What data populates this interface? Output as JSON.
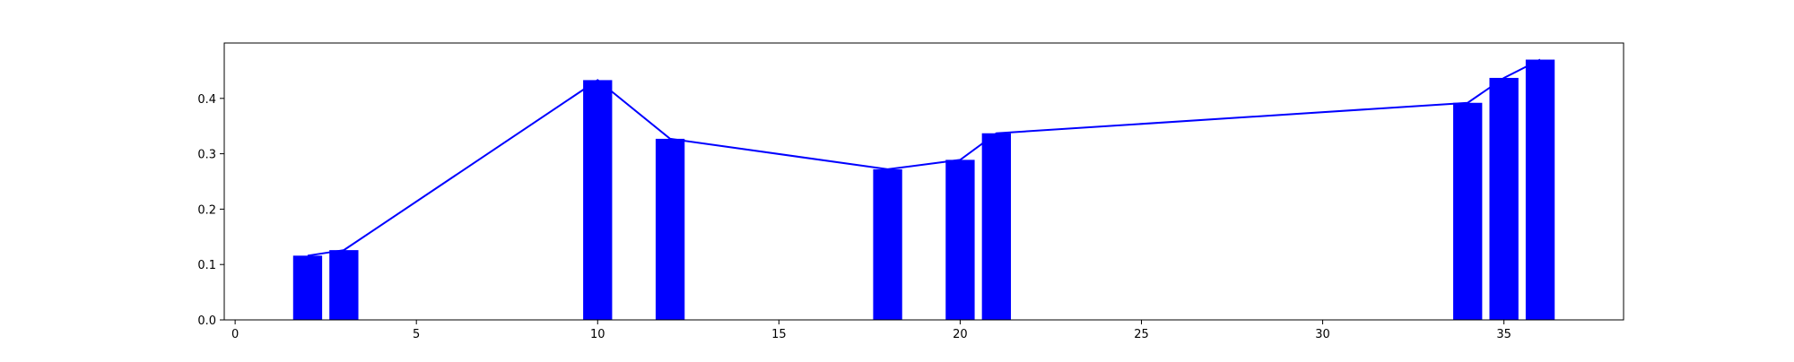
{
  "chart_data": {
    "type": "bar",
    "x": [
      2,
      3,
      10,
      12,
      18,
      20,
      21,
      34,
      35,
      36
    ],
    "values": [
      0.116,
      0.126,
      0.433,
      0.327,
      0.272,
      0.289,
      0.337,
      0.392,
      0.437,
      0.47
    ],
    "line_overlay": true,
    "xlim": [
      -0.3,
      38.3
    ],
    "ylim": [
      0,
      0.5
    ],
    "xticks": [
      0,
      5,
      10,
      15,
      20,
      25,
      30,
      35
    ],
    "yticks": [
      0.0,
      0.1,
      0.2,
      0.3,
      0.4
    ],
    "xtick_labels": [
      "0",
      "5",
      "10",
      "15",
      "20",
      "25",
      "30",
      "35"
    ],
    "ytick_labels": [
      "0.0",
      "0.1",
      "0.2",
      "0.3",
      "0.4"
    ],
    "bar_color": "#0000ff",
    "line_color": "#0000ff",
    "grid": false,
    "title": "",
    "xlabel": "",
    "ylabel": ""
  }
}
